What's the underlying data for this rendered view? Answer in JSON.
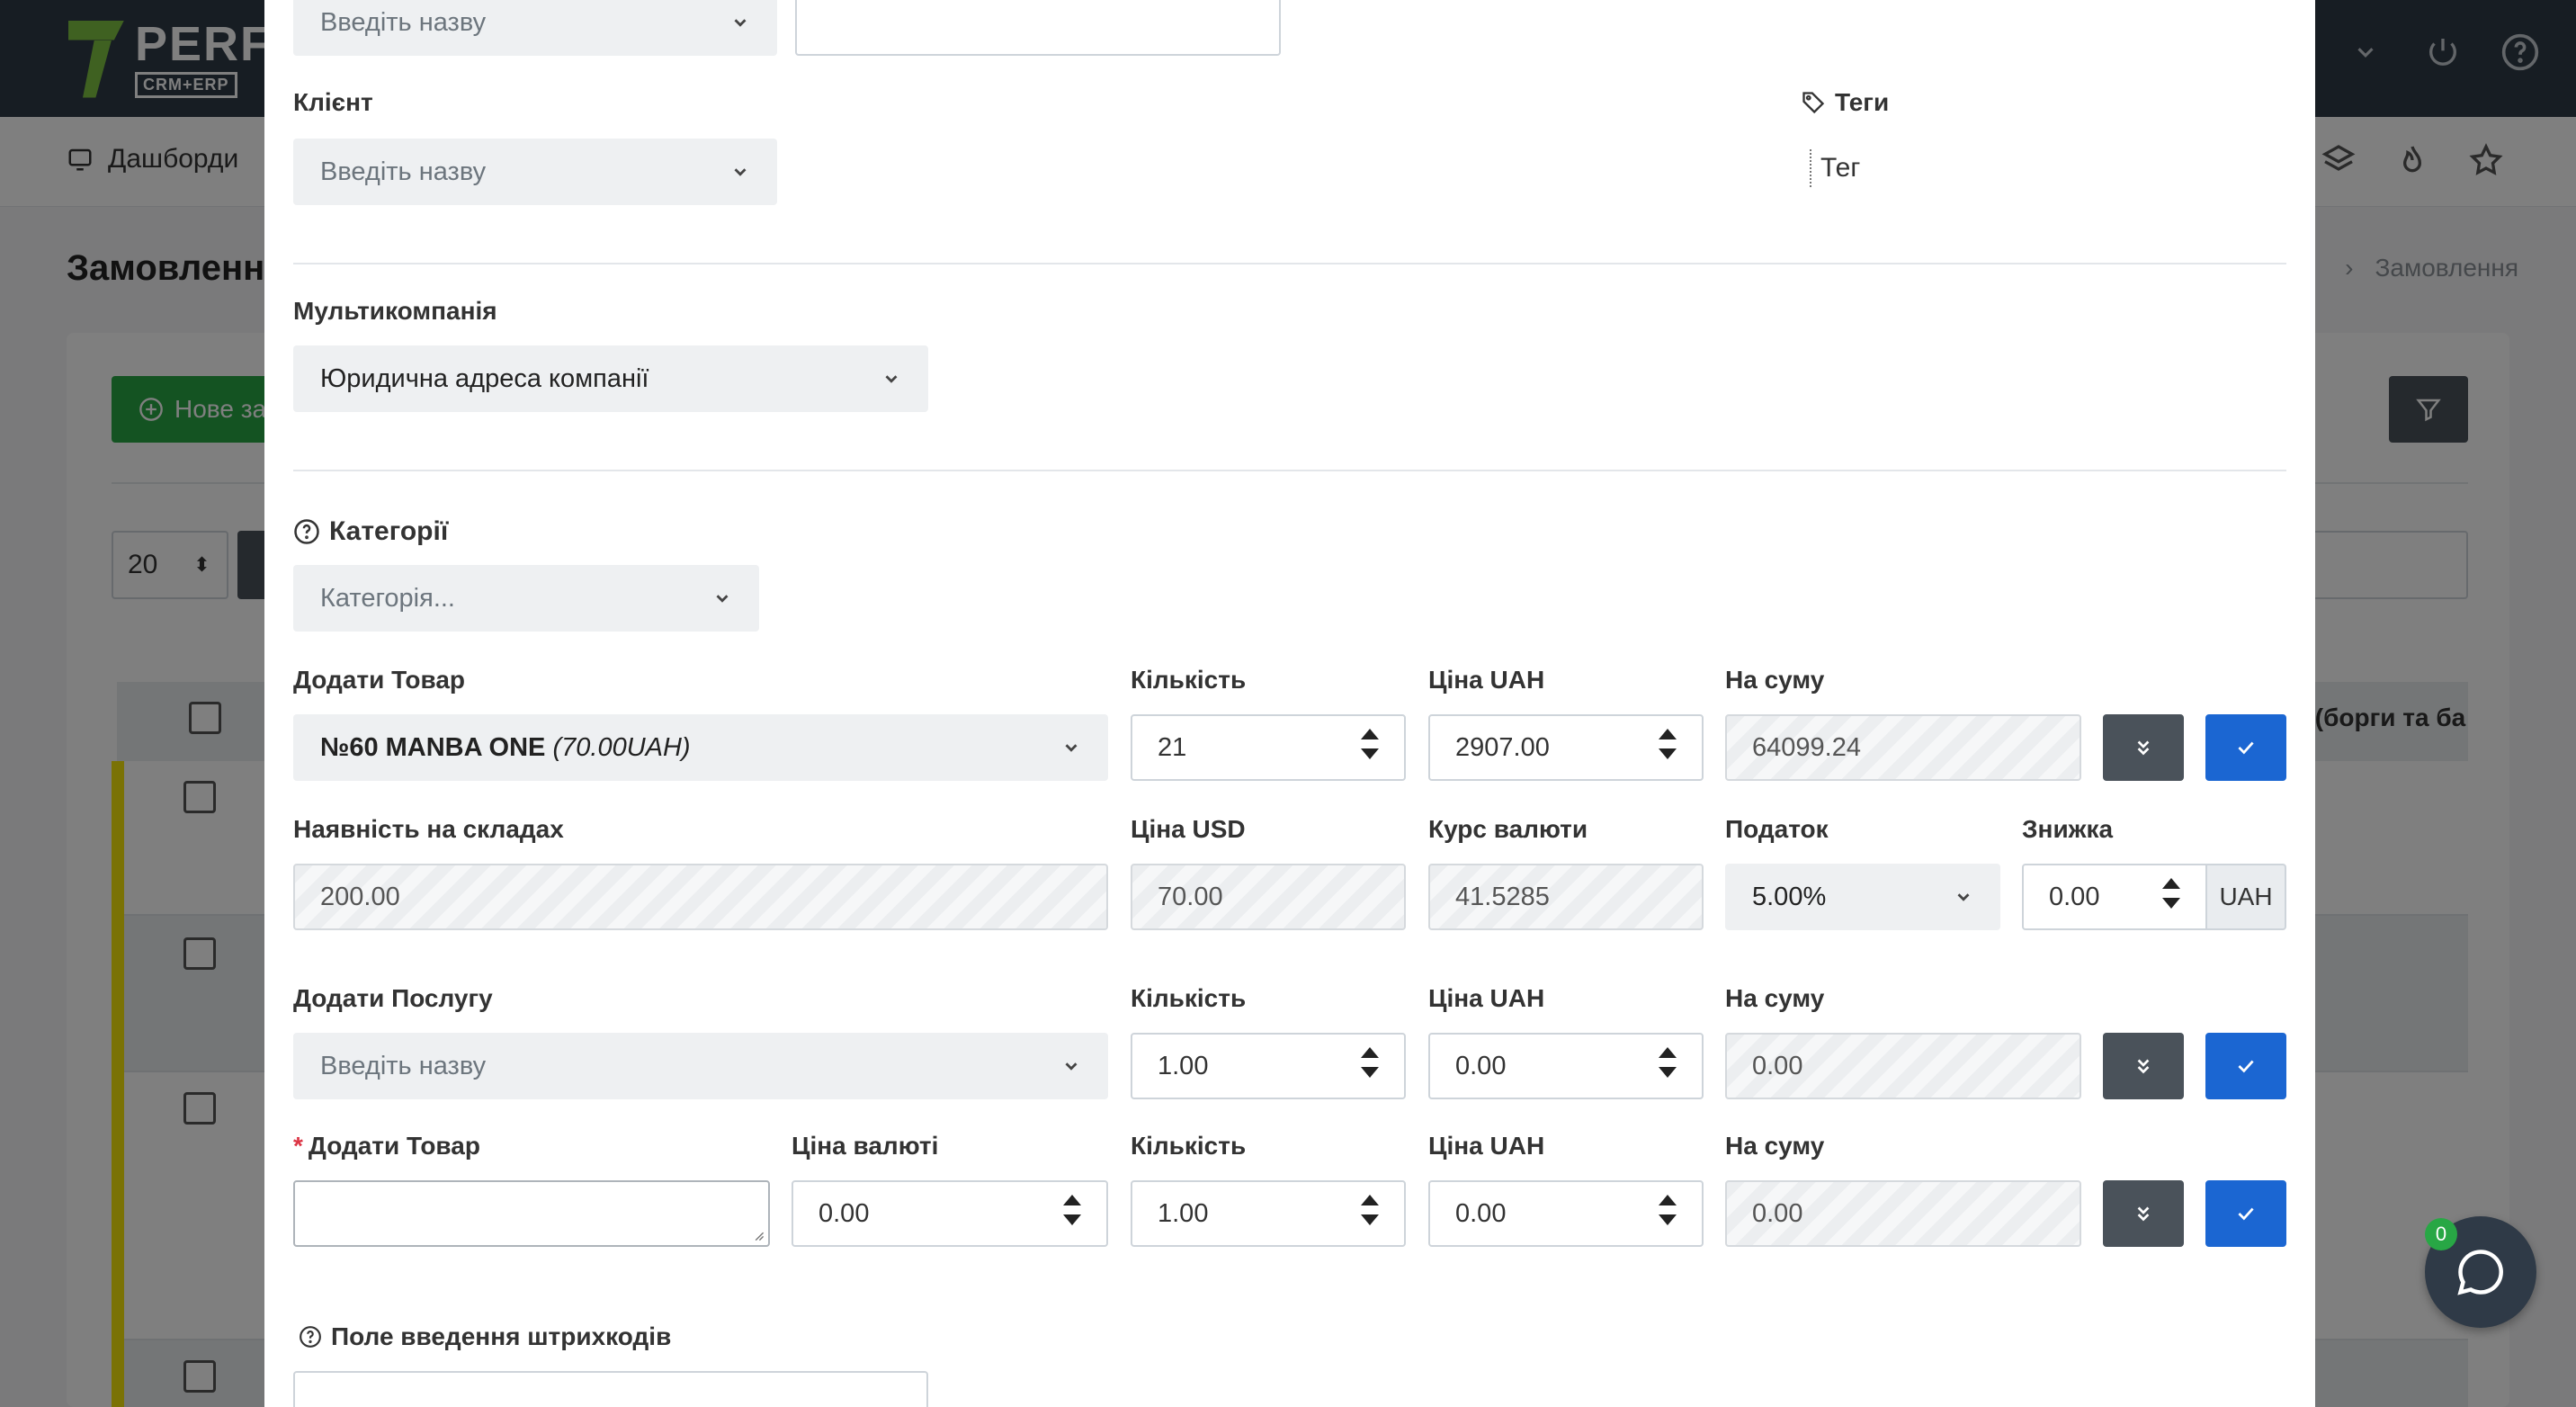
{
  "app": {
    "logo_name": "PERF",
    "logo_sub": "CRM+ERP",
    "nav_dashboards": "Дашборди",
    "page_title": "Замовлення",
    "breadcrumb_current": "Замовлення",
    "new_order_button": "Нове за",
    "page_size": "20",
    "table_header_partial": "к (борги та ба",
    "chat_badge": "0"
  },
  "modal": {
    "top_select_placeholder": "Введіть назву",
    "client": {
      "label": "Клієнт",
      "placeholder": "Введіть назву"
    },
    "tags": {
      "label": "Теги",
      "placeholder": "Тег"
    },
    "multicompany": {
      "label": "Мультикомпанія",
      "value": "Юридична адреса компанії"
    },
    "categories": {
      "label": "Категорії",
      "placeholder": "Категорія..."
    },
    "product_row": {
      "product_label": "Додати Товар",
      "product_value": "№60 MANBA ONE",
      "product_price_note": "(70.00UAH)",
      "qty_label": "Кількість",
      "qty_value": "21",
      "price_uah_label": "Ціна UAH",
      "price_uah_value": "2907.00",
      "sum_label": "На суму",
      "sum_value": "64099.24"
    },
    "stock_row": {
      "stock_label": "Наявність на складах",
      "stock_value": "200.00",
      "price_usd_label": "Ціна USD",
      "price_usd_value": "70.00",
      "rate_label": "Курс валюти",
      "rate_value": "41.5285",
      "tax_label": "Податок",
      "tax_value": "5.00%",
      "discount_label": "Знижка",
      "discount_value": "0.00",
      "discount_currency": "UAH"
    },
    "service_row": {
      "service_label": "Додати Послугу",
      "service_placeholder": "Введіть назву",
      "qty_label": "Кількість",
      "qty_value": "1.00",
      "price_uah_label": "Ціна UAH",
      "price_uah_value": "0.00",
      "sum_label": "На суму",
      "sum_value": "0.00"
    },
    "custom_row": {
      "product_label": "Додати Товар",
      "required_mark": "*",
      "currency_price_label": "Ціна валюті",
      "currency_price_value": "0.00",
      "qty_label": "Кількість",
      "qty_value": "1.00",
      "price_uah_label": "Ціна UAH",
      "price_uah_value": "0.00",
      "sum_label": "На суму",
      "sum_value": "0.00"
    },
    "barcode": {
      "label": "Поле введення штрихкодів"
    }
  }
}
